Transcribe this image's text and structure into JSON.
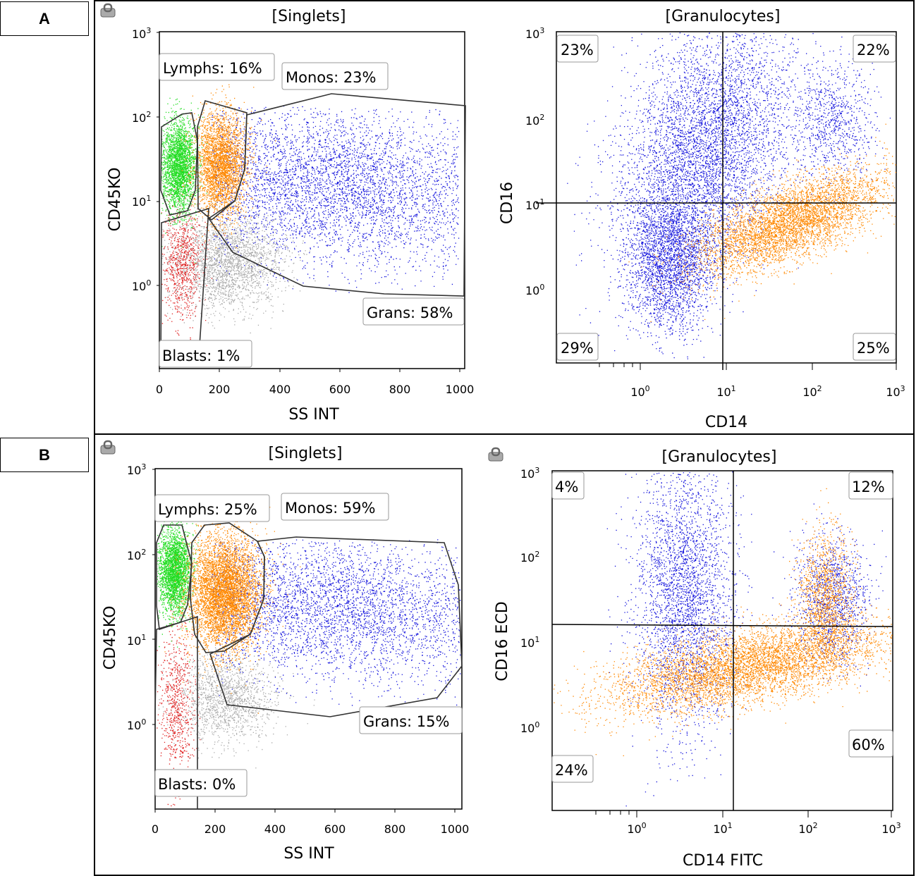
{
  "panels": [
    {
      "label": "A",
      "singlets": {
        "title": "[Singlets]",
        "xlabel": "SS INT",
        "ylabel": "CD45KO",
        "xticks": [
          "0",
          "200",
          "400",
          "600",
          "800",
          "1000"
        ],
        "yticks": [
          {
            "base": "10",
            "exp": "3"
          },
          {
            "base": "10",
            "exp": "2"
          },
          {
            "base": "10",
            "exp": "1"
          },
          {
            "base": "10",
            "exp": "0"
          }
        ],
        "gates": [
          {
            "name": "Lymphs",
            "text": "Lymphs: 16%",
            "color": "#22dd22"
          },
          {
            "name": "Monos",
            "text": "Monos: 23%",
            "color": "#ff8800"
          },
          {
            "name": "Grans",
            "text": "Grans: 58%",
            "color": "#1515dd"
          },
          {
            "name": "Blasts",
            "text": "Blasts: 1%",
            "color": "#e02020"
          }
        ]
      },
      "granulocytes": {
        "title": "[Granulocytes]",
        "xlabel": "CD14",
        "ylabel": "CD16",
        "xticks": [
          {
            "base": "10",
            "exp": "0"
          },
          {
            "base": "10",
            "exp": "1"
          },
          {
            "base": "10",
            "exp": "2"
          },
          {
            "base": "10",
            "exp": "3"
          }
        ],
        "yticks": [
          {
            "base": "10",
            "exp": "3"
          },
          {
            "base": "10",
            "exp": "2"
          },
          {
            "base": "10",
            "exp": "1"
          },
          {
            "base": "10",
            "exp": "0"
          }
        ],
        "quadrants": {
          "upper_left": "23%",
          "upper_right": "22%",
          "lower_left": "29%",
          "lower_right": "25%"
        }
      }
    },
    {
      "label": "B",
      "singlets": {
        "title": "[Singlets]",
        "xlabel": "SS INT",
        "ylabel": "CD45KO",
        "xticks": [
          "0",
          "200",
          "400",
          "600",
          "800",
          "1000"
        ],
        "yticks": [
          {
            "base": "10",
            "exp": "3"
          },
          {
            "base": "10",
            "exp": "2"
          },
          {
            "base": "10",
            "exp": "1"
          },
          {
            "base": "10",
            "exp": "0"
          }
        ],
        "gates": [
          {
            "name": "Lymphs",
            "text": "Lymphs: 25%",
            "color": "#22dd22"
          },
          {
            "name": "Monos",
            "text": "Monos: 59%",
            "color": "#ff8800"
          },
          {
            "name": "Grans",
            "text": "Grans: 15%",
            "color": "#1515dd"
          },
          {
            "name": "Blasts",
            "text": "Blasts: 0%",
            "color": "#e02020"
          }
        ]
      },
      "granulocytes": {
        "title": "[Granulocytes]",
        "xlabel": "CD14 FITC",
        "ylabel": "CD16 ECD",
        "xticks": [
          {
            "base": "10",
            "exp": "0"
          },
          {
            "base": "10",
            "exp": "1"
          },
          {
            "base": "10",
            "exp": "2"
          },
          {
            "base": "10",
            "exp": "3"
          }
        ],
        "yticks": [
          {
            "base": "10",
            "exp": "3"
          },
          {
            "base": "10",
            "exp": "2"
          },
          {
            "base": "10",
            "exp": "1"
          },
          {
            "base": "10",
            "exp": "0"
          }
        ],
        "quadrants": {
          "upper_left": "4%",
          "upper_right": "12%",
          "lower_left": "24%",
          "lower_right": "60%"
        }
      }
    }
  ],
  "chart_data": [
    {
      "type": "scatter",
      "panel": "A",
      "title": "[Singlets]",
      "xlabel": "SS INT",
      "ylabel": "CD45KO",
      "xlim": [
        0,
        1023
      ],
      "ylim_log10": [
        -1,
        3
      ],
      "gates": [
        {
          "name": "Lymphs",
          "percent": 16
        },
        {
          "name": "Monos",
          "percent": 23
        },
        {
          "name": "Grans",
          "percent": 58
        },
        {
          "name": "Blasts",
          "percent": 1
        }
      ]
    },
    {
      "type": "scatter",
      "panel": "A",
      "title": "[Granulocytes]",
      "xlabel": "CD14",
      "ylabel": "CD16",
      "xlim_log10": [
        -1,
        3
      ],
      "ylim_log10": [
        -1,
        3
      ],
      "quadrant_divider": {
        "x": 10,
        "y": 10
      },
      "quadrants": {
        "upper_left": 23,
        "upper_right": 22,
        "lower_left": 29,
        "lower_right": 25
      }
    },
    {
      "type": "scatter",
      "panel": "B",
      "title": "[Singlets]",
      "xlabel": "SS INT",
      "ylabel": "CD45KO",
      "xlim": [
        0,
        1023
      ],
      "ylim_log10": [
        -1,
        3
      ],
      "gates": [
        {
          "name": "Lymphs",
          "percent": 25
        },
        {
          "name": "Monos",
          "percent": 59
        },
        {
          "name": "Grans",
          "percent": 15
        },
        {
          "name": "Blasts",
          "percent": 0
        }
      ]
    },
    {
      "type": "scatter",
      "panel": "B",
      "title": "[Granulocytes]",
      "xlabel": "CD14 FITC",
      "ylabel": "CD16 ECD",
      "xlim_log10": [
        -1,
        3
      ],
      "ylim_log10": [
        -1,
        3
      ],
      "quadrant_divider": {
        "x": 13,
        "y": 15
      },
      "quadrants": {
        "upper_left": 4,
        "upper_right": 12,
        "lower_left": 24,
        "lower_right": 60
      }
    }
  ]
}
